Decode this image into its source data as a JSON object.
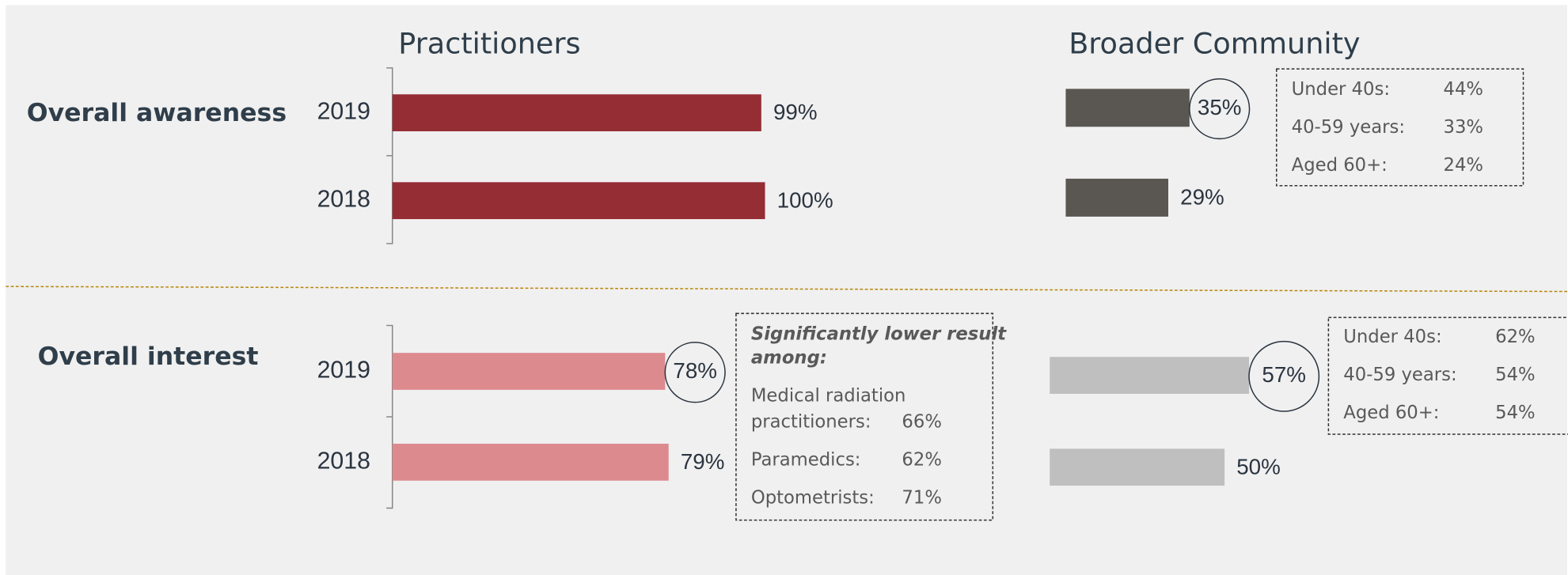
{
  "chart_data": [
    {
      "type": "bar",
      "orientation": "horizontal",
      "title": "Practitioners",
      "row_label": "Overall awareness",
      "categories": [
        "2019",
        "2018"
      ],
      "values": [
        99,
        100
      ],
      "value_labels": [
        "99%",
        "100%"
      ],
      "color": "#952d35",
      "xlim": [
        0,
        100
      ],
      "circled": [
        false,
        false
      ]
    },
    {
      "type": "bar",
      "orientation": "horizontal",
      "title": "Broader Community",
      "categories": [
        null,
        null
      ],
      "values": [
        35,
        29
      ],
      "value_labels": [
        "35%",
        "29%"
      ],
      "color": "#5a5752",
      "xlim": [
        0,
        100
      ],
      "circled": [
        true,
        false
      ],
      "breakdown": {
        "rows": [
          {
            "label": [
              "Under 40s:"
            ],
            "value": "44%"
          },
          {
            "label": [
              "40-59 years:"
            ],
            "value": "33%"
          },
          {
            "label": [
              "Aged 60+:"
            ],
            "value": "24%"
          }
        ]
      }
    },
    {
      "type": "bar",
      "orientation": "horizontal",
      "row_label": "Overall interest",
      "categories": [
        "2019",
        "2018"
      ],
      "values": [
        78,
        79
      ],
      "value_labels": [
        "78%",
        "79%"
      ],
      "color": "#dd8a8f",
      "xlim": [
        0,
        100
      ],
      "circled": [
        true,
        false
      ],
      "breakdown": {
        "title": [
          "Significantly lower result",
          "among:"
        ],
        "rows": [
          {
            "label": [
              "Medical radiation",
              "practitioners:"
            ],
            "value": "66%"
          },
          {
            "label": [
              "Paramedics:"
            ],
            "value": "62%"
          },
          {
            "label": [
              "Optometrists:"
            ],
            "value": "71%"
          }
        ]
      }
    },
    {
      "type": "bar",
      "orientation": "horizontal",
      "categories": [
        null,
        null
      ],
      "values": [
        57,
        50
      ],
      "value_labels": [
        "57%",
        "50%"
      ],
      "color": "#bfbfbf",
      "xlim": [
        0,
        100
      ],
      "circled": [
        true,
        false
      ],
      "breakdown": {
        "rows": [
          {
            "label": [
              "Under 40s:"
            ],
            "value": "62%"
          },
          {
            "label": [
              "40-59 years:"
            ],
            "value": "54%"
          },
          {
            "label": [
              "Aged 60+:"
            ],
            "value": "54%"
          }
        ]
      }
    }
  ]
}
